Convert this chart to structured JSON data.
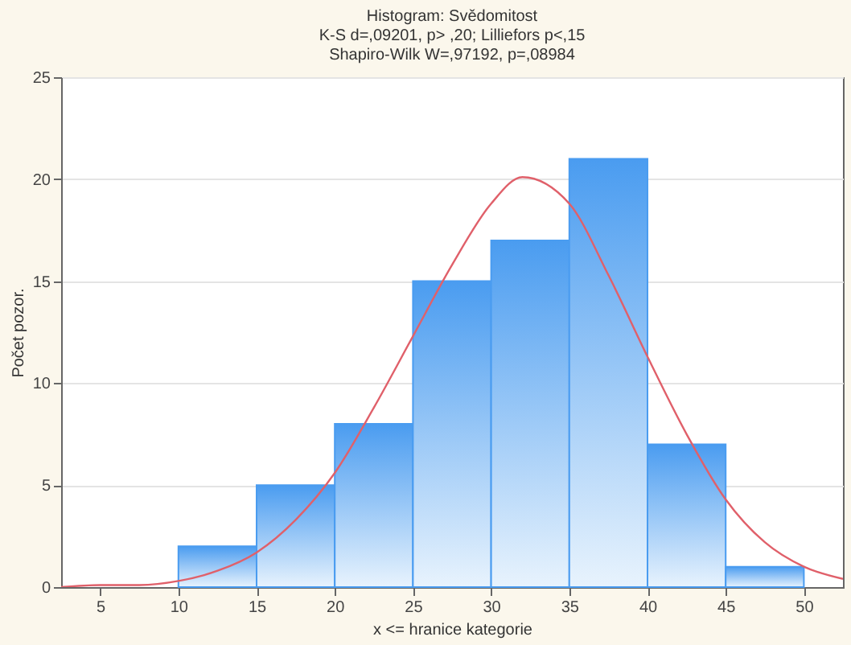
{
  "chart_data": {
    "type": "histogram",
    "title": "Histogram: Svědomitost",
    "subtitle": "K-S d=,09201, p> ,20; Lilliefors p<,15",
    "annotations": [
      "Shapiro-Wilk W=,97192, p=,08984"
    ],
    "xlabel": "x <= hranice kategorie",
    "ylabel": "Počet pozor.",
    "bins": [
      10,
      15,
      20,
      25,
      30,
      35,
      40,
      45,
      50
    ],
    "values": [
      2,
      5,
      8,
      15,
      17,
      21,
      7,
      1
    ],
    "color": "#4a9cf0",
    "series": [
      {
        "type": "line",
        "color": "#e0606a",
        "x": [
          2.5,
          5,
          7.5,
          10,
          12.5,
          15,
          17.5,
          20,
          22.5,
          25,
          27.5,
          30,
          32,
          35,
          37.5,
          40,
          42.5,
          45,
          47.5,
          50,
          52.5
        ],
        "values": [
          0,
          0.1,
          0.1,
          0.3,
          0.8,
          1.7,
          3.3,
          5.6,
          8.8,
          12.3,
          15.8,
          18.8,
          20.1,
          18.8,
          15.3,
          11.3,
          7.5,
          4.3,
          2.2,
          1.0,
          0.4
        ]
      }
    ],
    "xlim": [
      2.5,
      52.5
    ],
    "xticks": [
      5,
      10,
      15,
      20,
      25,
      30,
      35,
      40,
      45,
      50
    ],
    "ylim": [
      0,
      25
    ],
    "yticks": [
      0,
      5,
      10,
      15,
      20,
      25
    ],
    "grid": "y"
  }
}
